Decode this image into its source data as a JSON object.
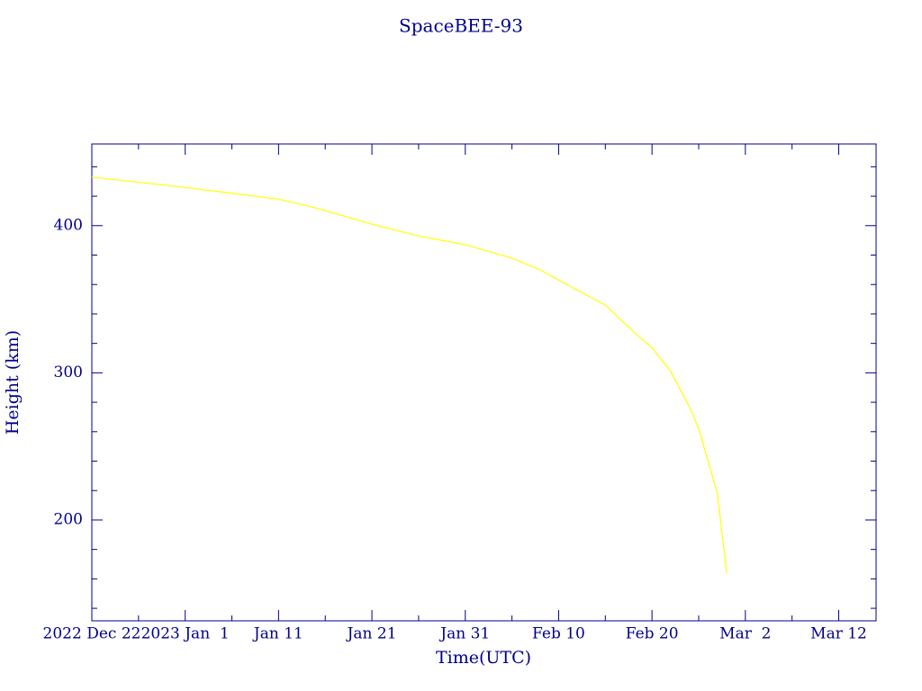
{
  "chart_data": {
    "type": "line",
    "title": "SpaceBEE-93",
    "x_label": "Time(UTC)",
    "y_label": "Height (km)",
    "x": [
      "2022-12-22",
      "2023-01-01",
      "2023-01-11",
      "2023-01-15",
      "2023-01-21",
      "2023-01-26",
      "2023-01-31",
      "2023-02-05",
      "2023-02-08",
      "2023-02-10",
      "2023-02-15",
      "2023-02-18",
      "2023-02-20",
      "2023-02-22",
      "2023-02-24",
      "2023-02-25",
      "2023-02-26",
      "2023-02-27",
      "2023-02-28"
    ],
    "series": [
      {
        "name": "SpaceBEE-93",
        "color": "#ffff00",
        "values": [
          433,
          426,
          418,
          412,
          401,
          393,
          387,
          378,
          370,
          363,
          346,
          328,
          317,
          301,
          277,
          262,
          240,
          218,
          164
        ]
      }
    ],
    "xlim": [
      "2022-12-22",
      "2023-03-16"
    ],
    "xticks": [
      {
        "value": "2022-12-22",
        "label": "2022 Dec 22"
      },
      {
        "value": "2023-01-01",
        "label": "2023 Jan  1"
      },
      {
        "value": "2023-01-11",
        "label": "Jan 11"
      },
      {
        "value": "2023-01-21",
        "label": "Jan 21"
      },
      {
        "value": "2023-01-31",
        "label": "Jan 31"
      },
      {
        "value": "2023-02-10",
        "label": "Feb 10"
      },
      {
        "value": "2023-02-20",
        "label": "Feb 20"
      },
      {
        "value": "2023-03-02",
        "label": "Mar  2"
      },
      {
        "value": "2023-03-12",
        "label": "Mar 12"
      }
    ],
    "xminorticks": [
      "2022-12-27",
      "2023-01-06",
      "2023-01-16",
      "2023-01-26",
      "2023-02-05",
      "2023-02-15",
      "2023-02-25",
      "2023-03-07"
    ],
    "ylim": [
      131.5,
      455.5
    ],
    "yticks": [
      200,
      300,
      400
    ],
    "yminorticks": [
      140,
      160,
      180,
      220,
      240,
      260,
      280,
      320,
      340,
      360,
      380,
      420,
      440
    ],
    "axis_color": "#00008b"
  }
}
